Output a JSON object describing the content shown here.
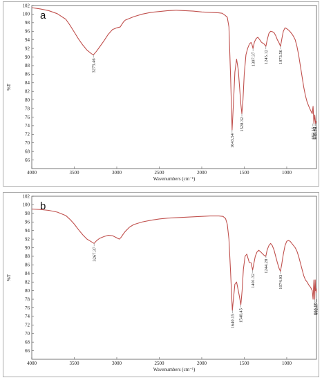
{
  "chart_data": [
    {
      "type": "line",
      "panel_label": "a",
      "xlabel": "Wavenumbers (cm⁻¹)",
      "ylabel": "%T",
      "xlim": [
        4000,
        650
      ],
      "ylim": [
        64,
        102
      ],
      "x_ticks": [
        "4000",
        "3500",
        "3000",
        "2500",
        "2000",
        "1500",
        "1000"
      ],
      "y_ticks": [
        "66",
        "68",
        "70",
        "72",
        "74",
        "76",
        "78",
        "80",
        "82",
        "84",
        "86",
        "88",
        "90",
        "92",
        "94",
        "96",
        "98",
        "100",
        "102"
      ],
      "grid": false,
      "line_color": "#c0504d",
      "series": [
        {
          "x": [
            4000,
            3900,
            3800,
            3700,
            3600,
            3550,
            3500,
            3450,
            3400,
            3350,
            3300,
            3275,
            3240,
            3200,
            3150,
            3100,
            3050,
            3000,
            2960,
            2940,
            2920,
            2900,
            2850,
            2800,
            2700,
            2600,
            2500,
            2400,
            2300,
            2200,
            2100,
            2000,
            1900,
            1800,
            1760,
            1730,
            1700,
            1680,
            1660,
            1643,
            1625,
            1610,
            1590,
            1570,
            1555,
            1540,
            1528,
            1515,
            1500,
            1480,
            1460,
            1440,
            1420,
            1410,
            1397,
            1380,
            1360,
            1340,
            1320,
            1300,
            1280,
            1265,
            1245,
            1230,
            1210,
            1190,
            1170,
            1150,
            1130,
            1110,
            1095,
            1073,
            1055,
            1040,
            1020,
            1000,
            980,
            960,
            940,
            920,
            900,
            880,
            860,
            840,
            820,
            800,
            780,
            760,
            740,
            720,
            700,
            690,
            680,
            670,
            660,
            655,
            650
          ],
          "y": [
            101.5,
            101.2,
            100.8,
            100.1,
            98.8,
            97.4,
            95.8,
            94.2,
            92.8,
            91.6,
            90.8,
            90.5,
            91.3,
            92.4,
            93.8,
            95.3,
            96.4,
            96.8,
            97.0,
            97.6,
            98.2,
            98.6,
            99.0,
            99.4,
            100.0,
            100.4,
            100.6,
            100.8,
            100.9,
            100.8,
            100.7,
            100.5,
            100.4,
            100.3,
            100.2,
            99.8,
            99.3,
            97.0,
            85.0,
            73.0,
            80.0,
            86.5,
            89.5,
            87.0,
            83.0,
            79.0,
            76.8,
            80.0,
            86.0,
            90.5,
            92.0,
            93.0,
            93.4,
            93.0,
            92.0,
            93.5,
            94.3,
            94.6,
            94.1,
            93.5,
            93.2,
            93.0,
            92.5,
            94.0,
            95.5,
            96.0,
            95.9,
            95.7,
            95.0,
            94.0,
            93.5,
            92.5,
            94.5,
            96.0,
            96.8,
            96.6,
            96.3,
            95.9,
            95.4,
            94.8,
            94.0,
            92.5,
            90.5,
            88.0,
            85.5,
            83.0,
            81.0,
            79.5,
            78.5,
            77.6,
            76.8,
            78.5,
            74.5,
            76.5,
            74.5,
            75.0,
            74.8
          ]
        }
      ],
      "annotations": [
        {
          "x": 3275,
          "y": 90.5,
          "label": "3275.46"
        },
        {
          "x": 1643,
          "y": 73.0,
          "label": "1643.54"
        },
        {
          "x": 1528,
          "y": 76.8,
          "label": "1528.32"
        },
        {
          "x": 1397,
          "y": 92.0,
          "label": "1397.37"
        },
        {
          "x": 1245,
          "y": 92.5,
          "label": "1245.12"
        },
        {
          "x": 1073,
          "y": 92.5,
          "label": "1073.56"
        },
        {
          "x": 692,
          "y": 74.5,
          "label": "692.15"
        },
        {
          "x": 677,
          "y": 74.5,
          "label": "637.45"
        },
        {
          "x": 662,
          "y": 74.5,
          "label": "618.16"
        }
      ]
    },
    {
      "type": "line",
      "panel_label": "b",
      "xlabel": "Wavenumbers (cm⁻¹)",
      "ylabel": "%T",
      "xlim": [
        4000,
        650
      ],
      "ylim": [
        64,
        102
      ],
      "x_ticks": [
        "4000",
        "3500",
        "3000",
        "2500",
        "2000",
        "1500",
        "1000"
      ],
      "y_ticks": [
        "66",
        "68",
        "70",
        "72",
        "74",
        "76",
        "78",
        "80",
        "82",
        "84",
        "86",
        "88",
        "90",
        "92",
        "94",
        "96",
        "98",
        "100",
        "102"
      ],
      "grid": false,
      "line_color": "#c0504d",
      "series": [
        {
          "x": [
            4000,
            3900,
            3800,
            3700,
            3600,
            3550,
            3500,
            3450,
            3400,
            3350,
            3300,
            3267,
            3240,
            3200,
            3150,
            3100,
            3050,
            3000,
            2970,
            2950,
            2930,
            2900,
            2850,
            2800,
            2700,
            2600,
            2500,
            2400,
            2300,
            2200,
            2100,
            2000,
            1900,
            1800,
            1750,
            1720,
            1700,
            1680,
            1660,
            1640,
            1625,
            1610,
            1590,
            1575,
            1560,
            1540,
            1525,
            1510,
            1490,
            1470,
            1455,
            1440,
            1420,
            1401,
            1385,
            1370,
            1350,
            1330,
            1310,
            1290,
            1270,
            1250,
            1244,
            1230,
            1210,
            1190,
            1170,
            1150,
            1130,
            1110,
            1090,
            1074,
            1060,
            1040,
            1020,
            1000,
            980,
            960,
            940,
            920,
            900,
            880,
            860,
            840,
            820,
            800,
            780,
            760,
            740,
            720,
            700,
            690,
            680,
            670,
            665,
            660,
            655,
            650
          ],
          "y": [
            99.0,
            98.9,
            98.7,
            98.3,
            97.5,
            96.6,
            95.5,
            94.2,
            93.0,
            92.0,
            91.4,
            91.0,
            91.6,
            92.2,
            92.6,
            92.9,
            92.8,
            92.3,
            92.0,
            92.4,
            93.0,
            93.8,
            94.8,
            95.4,
            96.0,
            96.4,
            96.7,
            96.9,
            97.0,
            97.1,
            97.2,
            97.3,
            97.4,
            97.4,
            97.3,
            96.8,
            95.5,
            92.0,
            84.0,
            75.4,
            78.5,
            81.5,
            82.0,
            80.5,
            79.0,
            76.7,
            80.0,
            85.0,
            88.0,
            88.5,
            87.5,
            86.5,
            86.5,
            84.8,
            86.5,
            88.0,
            89.0,
            89.4,
            89.1,
            88.7,
            88.3,
            88.0,
            88.2,
            89.5,
            90.5,
            91.0,
            90.5,
            89.5,
            88.0,
            86.5,
            85.2,
            84.5,
            86.0,
            88.5,
            90.5,
            91.5,
            91.7,
            91.5,
            91.0,
            90.5,
            90.0,
            89.2,
            88.0,
            86.5,
            85.0,
            83.5,
            82.5,
            82.0,
            81.3,
            80.8,
            80.0,
            78.0,
            82.5,
            78.0,
            82.5,
            80.0,
            80.4,
            79.5
          ]
        }
      ],
      "annotations": [
        {
          "x": 3267,
          "y": 91.0,
          "label": "3267.37"
        },
        {
          "x": 1640,
          "y": 75.4,
          "label": "1640.15"
        },
        {
          "x": 1540,
          "y": 76.7,
          "label": "1540.45"
        },
        {
          "x": 1401,
          "y": 84.8,
          "label": "1401.32"
        },
        {
          "x": 1244,
          "y": 88.2,
          "label": "1244.28"
        },
        {
          "x": 1074,
          "y": 84.5,
          "label": "1074.03"
        },
        {
          "x": 668,
          "y": 78.0,
          "label": "666.60"
        },
        {
          "x": 656,
          "y": 78.0,
          "label": "682.07"
        }
      ]
    }
  ]
}
